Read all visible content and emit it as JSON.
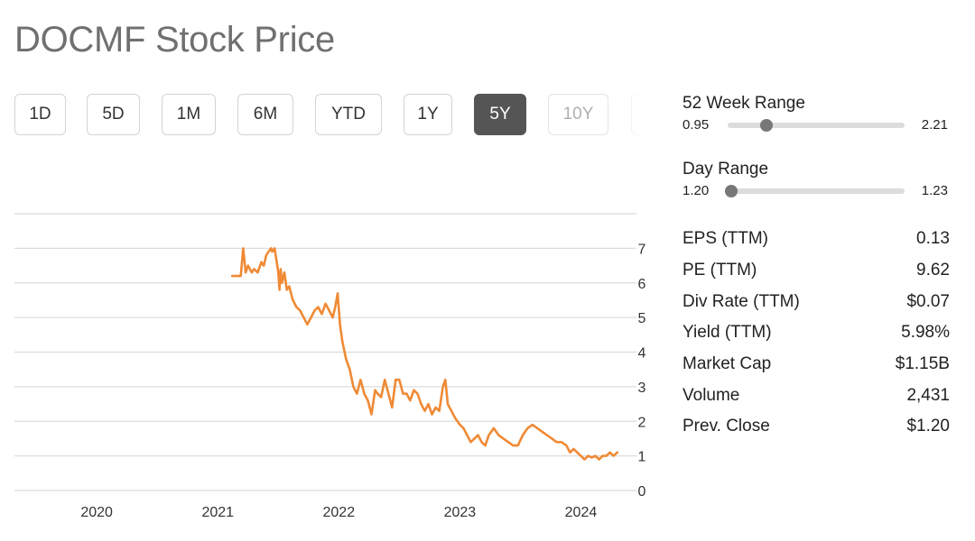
{
  "title": "DOCMF Stock Price",
  "range_buttons": [
    {
      "label": "1D",
      "state": "normal"
    },
    {
      "label": "5D",
      "state": "normal"
    },
    {
      "label": "1M",
      "state": "normal"
    },
    {
      "label": "6M",
      "state": "normal"
    },
    {
      "label": "YTD",
      "state": "normal"
    },
    {
      "label": "1Y",
      "state": "normal"
    },
    {
      "label": "5Y",
      "state": "active"
    },
    {
      "label": "10Y",
      "state": "disabled"
    }
  ],
  "week52_range": {
    "label": "52 Week Range",
    "low": "0.95",
    "high": "2.21",
    "position": 0.22
  },
  "day_range": {
    "label": "Day Range",
    "low": "1.20",
    "high": "1.23",
    "position": 0.02
  },
  "stats": [
    {
      "label": "EPS (TTM)",
      "value": "0.13"
    },
    {
      "label": "PE (TTM)",
      "value": "9.62"
    },
    {
      "label": "Div Rate (TTM)",
      "value": "$0.07"
    },
    {
      "label": "Yield (TTM)",
      "value": "5.98%"
    },
    {
      "label": "Market Cap",
      "value": "$1.15B"
    },
    {
      "label": "Volume",
      "value": "2,431"
    },
    {
      "label": "Prev. Close",
      "value": "$1.20"
    }
  ],
  "colors": {
    "line": "#ef8a35",
    "grid": "#dcdcdc",
    "active_button": "#555555"
  },
  "chart_data": {
    "type": "line",
    "x_range": [
      2019.32,
      2024.31
    ],
    "ylim": [
      0,
      8
    ],
    "yticks": [
      0,
      1,
      2,
      3,
      4,
      5,
      6,
      7
    ],
    "xticks": [
      2020,
      2021,
      2022,
      2023,
      2024
    ],
    "grid": true,
    "series": [
      {
        "x": [
          2021.12,
          2021.19,
          2021.21,
          2021.23,
          2021.25,
          2021.28,
          2021.3,
          2021.33,
          2021.36,
          2021.38,
          2021.4,
          2021.42,
          2021.44,
          2021.45,
          2021.47,
          2021.5,
          2021.51,
          2021.52,
          2021.53,
          2021.55,
          2021.57,
          2021.59,
          2021.62,
          2021.65,
          2021.68,
          2021.71,
          2021.74,
          2021.77,
          2021.8,
          2021.83,
          2021.86,
          2021.89,
          2021.92,
          2021.95,
          2021.97,
          2021.99,
          2022.01,
          2022.03,
          2022.06,
          2022.09,
          2022.12,
          2022.15,
          2022.18,
          2022.21,
          2022.24,
          2022.27,
          2022.3,
          2022.32,
          2022.35,
          2022.38,
          2022.41,
          2022.44,
          2022.47,
          2022.5,
          2022.53,
          2022.56,
          2022.59,
          2022.62,
          2022.65,
          2022.68,
          2022.71,
          2022.74,
          2022.77,
          2022.8,
          2022.83,
          2022.86,
          2022.88,
          2022.9,
          2022.93,
          2022.96,
          2023.0,
          2023.03,
          2023.06,
          2023.09,
          2023.12,
          2023.15,
          2023.18,
          2023.21,
          2023.24,
          2023.28,
          2023.32,
          2023.36,
          2023.4,
          2023.44,
          2023.48,
          2023.52,
          2023.56,
          2023.6,
          2023.64,
          2023.68,
          2023.72,
          2023.76,
          2023.8,
          2023.84,
          2023.88,
          2023.91,
          2023.94,
          2023.97,
          2024.0,
          2024.03,
          2024.06,
          2024.09,
          2024.12,
          2024.15,
          2024.18,
          2024.21,
          2024.24,
          2024.27,
          2024.3
        ],
        "y": [
          6.2,
          6.2,
          7.0,
          6.3,
          6.5,
          6.3,
          6.4,
          6.3,
          6.6,
          6.5,
          6.8,
          6.9,
          7.0,
          6.9,
          7.0,
          6.3,
          5.8,
          6.4,
          6.0,
          6.3,
          5.8,
          5.9,
          5.5,
          5.3,
          5.2,
          5.0,
          4.8,
          5.0,
          5.2,
          5.3,
          5.1,
          5.4,
          5.2,
          5.0,
          5.3,
          5.7,
          4.8,
          4.3,
          3.8,
          3.5,
          3.0,
          2.8,
          3.2,
          2.8,
          2.6,
          2.2,
          2.9,
          2.8,
          2.7,
          3.2,
          2.8,
          2.4,
          3.2,
          3.2,
          2.8,
          2.8,
          2.6,
          2.9,
          2.8,
          2.5,
          2.3,
          2.5,
          2.2,
          2.4,
          2.3,
          3.0,
          3.2,
          2.5,
          2.3,
          2.1,
          1.9,
          1.8,
          1.6,
          1.4,
          1.5,
          1.6,
          1.4,
          1.3,
          1.6,
          1.8,
          1.6,
          1.5,
          1.4,
          1.3,
          1.3,
          1.6,
          1.8,
          1.9,
          1.8,
          1.7,
          1.6,
          1.5,
          1.4,
          1.4,
          1.3,
          1.1,
          1.2,
          1.1,
          1.0,
          0.9,
          1.0,
          0.95,
          1.0,
          0.9,
          1.0,
          1.0,
          1.1,
          1.0,
          1.1
        ]
      }
    ]
  }
}
